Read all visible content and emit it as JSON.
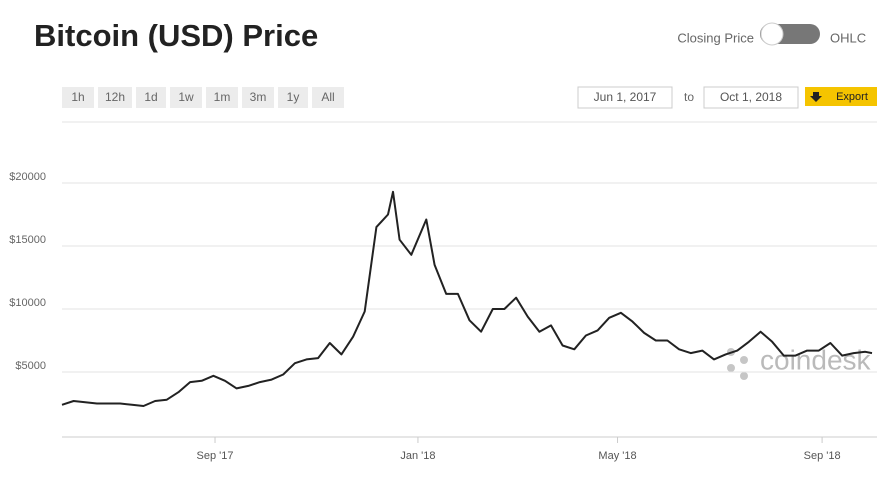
{
  "header": {
    "title": "Bitcoin (USD) Price",
    "toggle_left": "Closing Price",
    "toggle_right": "OHLC"
  },
  "controls": {
    "ranges": [
      "1h",
      "12h",
      "1d",
      "1w",
      "1m",
      "3m",
      "1y",
      "All"
    ],
    "date_from": "Jun 1, 2017",
    "date_sep": "to",
    "date_to": "Oct 1, 2018",
    "export": "Export"
  },
  "chart_data": {
    "type": "line",
    "watermark": "coindesk",
    "color": "#222222",
    "grid": true,
    "x": [
      0,
      7,
      14,
      21,
      28,
      35,
      42,
      49,
      56,
      63,
      70,
      77,
      84,
      91,
      98,
      105,
      112,
      119,
      126,
      133,
      140,
      147,
      154,
      161,
      168,
      175,
      182,
      189,
      196,
      199,
      203,
      210,
      219,
      224,
      231,
      238,
      245,
      252,
      259,
      266,
      273,
      280,
      287,
      294,
      301,
      308,
      315,
      322,
      329,
      336,
      343,
      350,
      357,
      364,
      371,
      378,
      385,
      392,
      399,
      406,
      413,
      420,
      427,
      434,
      441,
      448,
      455,
      462,
      469,
      476,
      483,
      487
    ],
    "values": [
      2400,
      2700,
      2600,
      2500,
      2500,
      2500,
      2400,
      2300,
      2700,
      2800,
      3400,
      4200,
      4300,
      4700,
      4300,
      3700,
      3900,
      4200,
      4400,
      4800,
      5700,
      6000,
      6100,
      7300,
      6400,
      7800,
      9800,
      16500,
      17500,
      19300,
      15500,
      14300,
      17100,
      13500,
      11200,
      11200,
      9100,
      8200,
      10000,
      10000,
      10900,
      9400,
      8200,
      8700,
      7100,
      6800,
      7900,
      8300,
      9300,
      9700,
      9000,
      8100,
      7500,
      7500,
      6800,
      6500,
      6700,
      6000,
      6400,
      6700,
      7400,
      8200,
      7400,
      6300,
      6300,
      6700,
      6700,
      7300,
      6300,
      6500,
      6600,
      6500
    ],
    "xlim": [
      0,
      487
    ],
    "xticks": [
      {
        "value": 92,
        "label": "Sep '17"
      },
      {
        "value": 214,
        "label": "Jan '18"
      },
      {
        "value": 334,
        "label": "May '18"
      },
      {
        "value": 457,
        "label": "Sep '18"
      }
    ],
    "ylim": [
      0,
      25000
    ],
    "yticks": [
      {
        "value": 5000,
        "label": "$5000"
      },
      {
        "value": 10000,
        "label": "$10000"
      },
      {
        "value": 15000,
        "label": "$15000"
      },
      {
        "value": 20000,
        "label": "$20000"
      }
    ]
  }
}
